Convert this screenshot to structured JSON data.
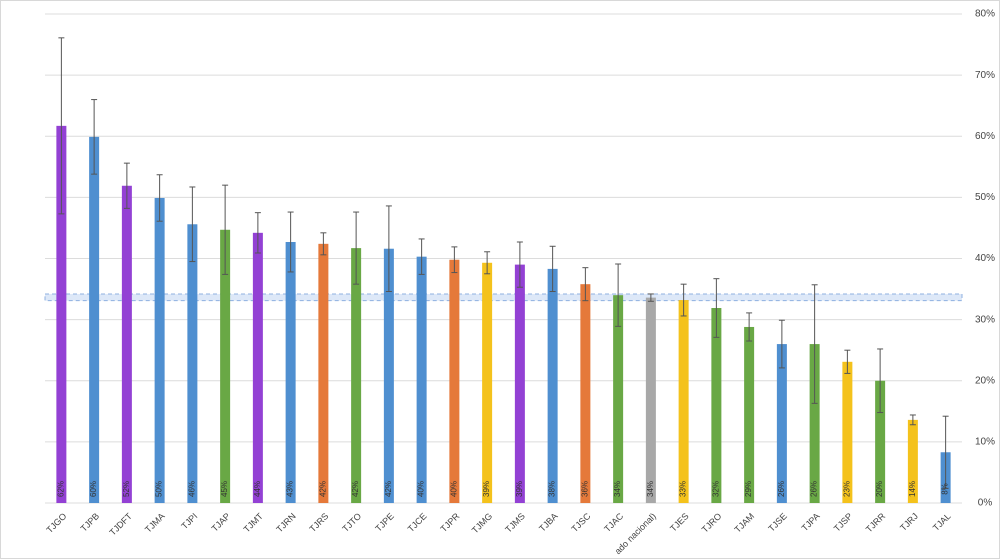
{
  "chart_data": {
    "type": "bar",
    "categories": [
      "TJGO",
      "TJPB",
      "TJDFT",
      "TJMA",
      "TJPI",
      "TJAP",
      "TJMT",
      "TJRN",
      "TJRS",
      "TJTO",
      "TJPE",
      "TJCE",
      "TJPR",
      "TJMG",
      "TJMS",
      "TJBA",
      "TJSC",
      "TJAC",
      "ado nacional)",
      "TJES",
      "TJRO",
      "TJAM",
      "TJSE",
      "TJPA",
      "TJSP",
      "TJRR",
      "TJRJ",
      "TJAL"
    ],
    "values": [
      61.7,
      59.9,
      51.9,
      49.9,
      45.6,
      44.7,
      44.2,
      42.7,
      42.4,
      41.7,
      41.6,
      40.3,
      39.8,
      39.3,
      39.0,
      38.3,
      35.8,
      34.0,
      33.6,
      33.2,
      31.9,
      28.8,
      26.0,
      26.0,
      23.1,
      20.0,
      13.6,
      8.3
    ],
    "value_labels": [
      "62%",
      "60%",
      "52%",
      "50%",
      "46%",
      "45%",
      "44%",
      "43%",
      "42%",
      "42%",
      "42%",
      "40%",
      "40%",
      "39%",
      "39%",
      "38%",
      "36%",
      "34%",
      "34%",
      "33%",
      "32%",
      "29%",
      "26%",
      "26%",
      "23%",
      "20%",
      "14%",
      "8%"
    ],
    "errors": [
      14.4,
      6.1,
      3.7,
      3.8,
      6.1,
      7.3,
      3.3,
      4.9,
      1.8,
      5.9,
      7.0,
      2.9,
      2.1,
      1.8,
      3.7,
      3.7,
      2.7,
      5.1,
      0.6,
      2.6,
      4.8,
      2.3,
      3.9,
      9.7,
      1.9,
      5.2,
      0.8,
      5.9
    ],
    "colors": [
      "#9341d4",
      "#4f8fd0",
      "#9341d4",
      "#4f8fd0",
      "#4f8fd0",
      "#69a845",
      "#9341d4",
      "#4f8fd0",
      "#e5793a",
      "#69a845",
      "#4f8fd0",
      "#4f8fd0",
      "#e5793a",
      "#f4c21c",
      "#9341d4",
      "#4f8fd0",
      "#e5793a",
      "#69a845",
      "#a8a8a8",
      "#f4c21c",
      "#69a845",
      "#69a845",
      "#4f8fd0",
      "#69a845",
      "#f4c21c",
      "#69a845",
      "#f4c21c",
      "#4f8fd0"
    ],
    "reference_band": [
      33.1,
      34.2
    ],
    "ylim": [
      0,
      80
    ],
    "yticks": [
      {
        "value": 0,
        "label": "0%"
      },
      {
        "value": 10,
        "label": "10%"
      },
      {
        "value": 20,
        "label": "20%"
      },
      {
        "value": 30,
        "label": "30%"
      },
      {
        "value": 40,
        "label": "40%"
      },
      {
        "value": 50,
        "label": "50%"
      },
      {
        "value": 60,
        "label": "60%"
      },
      {
        "value": 70,
        "label": "70%"
      },
      {
        "value": 80,
        "label": "80%"
      }
    ],
    "grid": true
  }
}
